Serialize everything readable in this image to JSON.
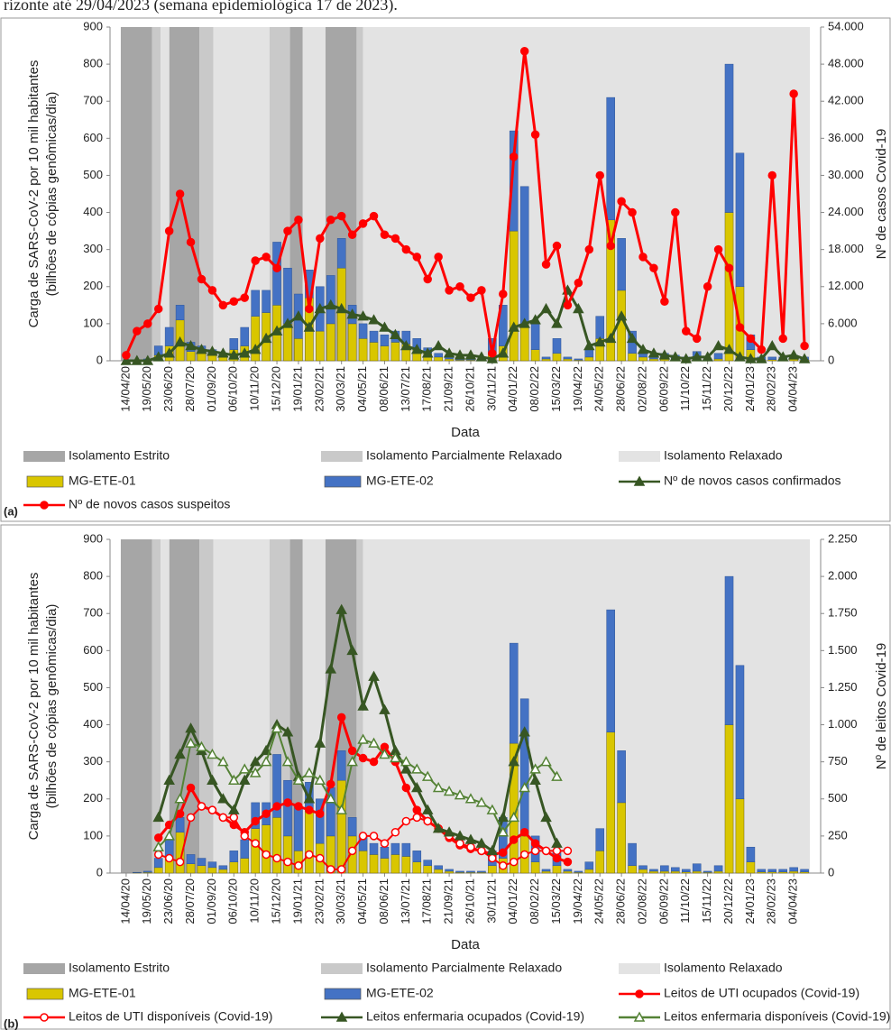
{
  "caption": "rizonte até 29/04/2023 (semana epidemiológica 17 de 2023).",
  "chart_data": [
    {
      "type": "combo",
      "label": "(a)",
      "xlabel": "Data",
      "ylabel": [
        "Carga de SARS-CoV-2 por 10 mil habitantes",
        "(bilhões de cópias genômicas/dia)"
      ],
      "y2label": "Nº de casos Covid-19",
      "categories": [
        "14/04/20",
        null,
        "19/05/20",
        null,
        "23/06/20",
        null,
        "28/07/20",
        null,
        "01/09/20",
        null,
        "06/10/20",
        null,
        "10/11/20",
        null,
        "15/12/20",
        null,
        "19/01/21",
        null,
        "23/02/21",
        null,
        "30/03/21",
        null,
        "04/05/21",
        null,
        "08/06/21",
        null,
        "13/07/21",
        null,
        "17/08/21",
        null,
        "21/09/21",
        null,
        "26/10/21",
        null,
        "30/11/21",
        null,
        "04/01/22",
        null,
        "08/02/22",
        null,
        "15/03/22",
        null,
        "19/04/22",
        null,
        "24/05/22",
        null,
        "28/06/22",
        null,
        "02/08/22",
        null,
        "06/09/22",
        null,
        "11/10/22",
        null,
        "15/11/22",
        null,
        "20/12/22",
        null,
        "24/01/23",
        null,
        "28/02/23",
        null,
        "04/04/23",
        null
      ],
      "ylim": [
        0,
        900
      ],
      "yticks": [
        0,
        100,
        200,
        300,
        400,
        500,
        600,
        700,
        800,
        900
      ],
      "y2lim": [
        0,
        54000
      ],
      "y2ticks": [
        0,
        {
          "value": 6000,
          "label": "6.000"
        },
        {
          "value": 12000,
          "label": "12.000"
        },
        {
          "value": 18000,
          "label": "18.000"
        },
        {
          "value": 24000,
          "label": "24.000"
        },
        {
          "value": 30000,
          "label": "30.000"
        },
        {
          "value": 36000,
          "label": "36.000"
        },
        {
          "value": 42000,
          "label": "42.000"
        },
        {
          "value": 48000,
          "label": "48.000"
        },
        {
          "value": 54000,
          "label": "54.000"
        }
      ],
      "grid": false,
      "periods": [
        {
          "name": "Isolamento Estrito",
          "color": "#a6a6a6",
          "ranges": [
            [
              -0.5,
              2.4
            ],
            [
              4.0,
              6.8
            ],
            [
              15.2,
              16.4
            ],
            [
              18.5,
              21.4
            ]
          ]
        },
        {
          "name": "Isolamento Parcialmente Relaxado",
          "color": "#c9c9c9",
          "ranges": [
            [
              2.4,
              3.2
            ],
            [
              6.8,
              8.1
            ],
            [
              13.3,
              15.2
            ],
            [
              21.4,
              22.0
            ]
          ]
        },
        {
          "name": "Isolamento Relaxado",
          "color": "#e3e3e3",
          "ranges": [
            [
              3.2,
              4.0
            ],
            [
              8.1,
              13.3
            ],
            [
              16.4,
              18.5
            ],
            [
              22.0,
              63.5
            ]
          ]
        }
      ],
      "series": [
        {
          "name": "MG-ETE-01",
          "kind": "bar",
          "color": "#d9c600",
          "values": [
            0,
            1,
            2,
            15,
            40,
            110,
            25,
            20,
            15,
            10,
            30,
            40,
            120,
            130,
            150,
            100,
            60,
            170,
            80,
            100,
            250,
            100,
            60,
            50,
            40,
            50,
            45,
            30,
            20,
            10,
            5,
            2,
            2,
            2,
            20,
            40,
            350,
            100,
            30,
            5,
            20,
            5,
            2,
            10,
            60,
            380,
            190,
            20,
            10,
            5,
            5,
            5,
            3,
            5,
            2,
            5,
            400,
            200,
            30,
            3,
            3,
            3,
            5,
            3
          ]
        },
        {
          "name": "MG-ETE-02",
          "kind": "bar",
          "color": "#4472c4",
          "values": [
            0,
            1,
            3,
            25,
            50,
            40,
            25,
            20,
            15,
            10,
            30,
            50,
            70,
            60,
            170,
            150,
            120,
            75,
            120,
            130,
            80,
            50,
            40,
            30,
            30,
            30,
            35,
            30,
            15,
            10,
            5,
            3,
            3,
            3,
            40,
            110,
            270,
            370,
            70,
            5,
            40,
            5,
            3,
            20,
            60,
            330,
            140,
            60,
            10,
            5,
            15,
            10,
            7,
            20,
            3,
            15,
            400,
            360,
            40,
            7,
            7,
            7,
            10,
            7
          ]
        },
        {
          "name": "Nº de novos casos confirmados",
          "kind": "line",
          "axis": "y2",
          "color": "#375623",
          "marker": "triangle",
          "hollow": false,
          "values": [
            0,
            0,
            0,
            600,
            1200,
            3000,
            2400,
            1800,
            1500,
            1200,
            900,
            1200,
            1800,
            3600,
            4800,
            6000,
            7200,
            5400,
            8400,
            9000,
            8400,
            7500,
            7200,
            6600,
            5400,
            4200,
            2400,
            1800,
            1200,
            2400,
            1200,
            900,
            900,
            600,
            300,
            1200,
            5400,
            6000,
            6600,
            8400,
            6000,
            11400,
            8400,
            2400,
            3000,
            3600,
            7200,
            3600,
            1800,
            1200,
            900,
            600,
            300,
            600,
            600,
            2400,
            1800,
            600,
            300,
            300,
            2400,
            600,
            900,
            300
          ]
        },
        {
          "name": "Nº de novos casos suspeitos",
          "kind": "line",
          "axis": "y2",
          "color": "#ff0000",
          "marker": "circle",
          "hollow": false,
          "values": [
            900,
            4800,
            6000,
            8400,
            21000,
            27000,
            19200,
            13200,
            11400,
            9000,
            9600,
            10200,
            16200,
            16800,
            15000,
            21000,
            22800,
            8400,
            19800,
            22800,
            23400,
            20400,
            22200,
            23400,
            20400,
            19800,
            18000,
            16800,
            13200,
            16800,
            11400,
            12000,
            10200,
            11400,
            1200,
            10800,
            33000,
            50100,
            36600,
            15600,
            18600,
            9000,
            12600,
            18000,
            30000,
            18600,
            25800,
            24000,
            16800,
            15000,
            9600,
            24000,
            4800,
            3600,
            12000,
            18000,
            15000,
            5400,
            3600,
            1800,
            30000,
            3600,
            43200,
            2400
          ]
        }
      ]
    },
    {
      "type": "combo",
      "label": "(b)",
      "xlabel": "Data",
      "ylabel": [
        "Carga de SARS-CoV-2 por 10 mil habitantes",
        "(bilhões de cópias genômicas/dia)"
      ],
      "y2label": "Nº de leitos Covid-19",
      "categories": [
        "14/04/20",
        null,
        "19/05/20",
        null,
        "23/06/20",
        null,
        "28/07/20",
        null,
        "01/09/20",
        null,
        "06/10/20",
        null,
        "10/11/20",
        null,
        "15/12/20",
        null,
        "19/01/21",
        null,
        "23/02/21",
        null,
        "30/03/21",
        null,
        "04/05/21",
        null,
        "08/06/21",
        null,
        "13/07/21",
        null,
        "17/08/21",
        null,
        "21/09/21",
        null,
        "26/10/21",
        null,
        "30/11/21",
        null,
        "04/01/22",
        null,
        "08/02/22",
        null,
        "15/03/22",
        null,
        "19/04/22",
        null,
        "24/05/22",
        null,
        "28/06/22",
        null,
        "02/08/22",
        null,
        "06/09/22",
        null,
        "11/10/22",
        null,
        "15/11/22",
        null,
        "20/12/22",
        null,
        "24/01/23",
        null,
        "28/02/23",
        null,
        "04/04/23",
        null
      ],
      "ylim": [
        0,
        900
      ],
      "yticks": [
        0,
        100,
        200,
        300,
        400,
        500,
        600,
        700,
        800,
        900
      ],
      "y2lim": [
        0,
        2250
      ],
      "y2ticks": [
        0,
        250,
        500,
        750,
        {
          "value": 1000,
          "label": "1.000"
        },
        {
          "value": 1250,
          "label": "1.250"
        },
        {
          "value": 1500,
          "label": "1.500"
        },
        {
          "value": 1750,
          "label": "1.750"
        },
        {
          "value": 2000,
          "label": "2.000"
        },
        {
          "value": 2250,
          "label": "2.250"
        }
      ],
      "grid": false,
      "periods": [
        {
          "name": "Isolamento Estrito",
          "color": "#a6a6a6",
          "ranges": [
            [
              -0.5,
              2.4
            ],
            [
              4.0,
              6.8
            ],
            [
              15.2,
              16.4
            ],
            [
              18.5,
              21.4
            ]
          ]
        },
        {
          "name": "Isolamento Parcialmente Relaxado",
          "color": "#c9c9c9",
          "ranges": [
            [
              2.4,
              3.2
            ],
            [
              6.8,
              8.1
            ],
            [
              13.3,
              15.2
            ],
            [
              21.4,
              22.0
            ]
          ]
        },
        {
          "name": "Isolamento Relaxado",
          "color": "#e3e3e3",
          "ranges": [
            [
              3.2,
              4.0
            ],
            [
              8.1,
              13.3
            ],
            [
              16.4,
              18.5
            ],
            [
              22.0,
              63.5
            ]
          ]
        }
      ],
      "series": [
        {
          "name": "MG-ETE-01",
          "kind": "bar",
          "color": "#d9c600",
          "values": [
            0,
            1,
            2,
            15,
            40,
            110,
            25,
            20,
            15,
            10,
            30,
            40,
            120,
            130,
            150,
            100,
            60,
            170,
            80,
            100,
            250,
            100,
            60,
            50,
            40,
            50,
            45,
            30,
            20,
            10,
            5,
            2,
            2,
            2,
            20,
            40,
            350,
            100,
            30,
            5,
            20,
            5,
            2,
            10,
            60,
            380,
            190,
            20,
            10,
            5,
            5,
            5,
            3,
            5,
            2,
            5,
            400,
            200,
            30,
            3,
            3,
            3,
            5,
            3
          ]
        },
        {
          "name": "MG-ETE-02",
          "kind": "bar",
          "color": "#4472c4",
          "values": [
            0,
            1,
            3,
            25,
            50,
            40,
            25,
            20,
            15,
            10,
            30,
            50,
            70,
            60,
            170,
            150,
            120,
            75,
            120,
            130,
            80,
            50,
            40,
            30,
            30,
            30,
            35,
            30,
            15,
            10,
            5,
            3,
            3,
            3,
            40,
            110,
            270,
            370,
            70,
            5,
            40,
            5,
            3,
            20,
            60,
            330,
            140,
            60,
            10,
            5,
            15,
            10,
            7,
            20,
            3,
            15,
            400,
            360,
            40,
            7,
            7,
            7,
            10,
            7
          ]
        },
        {
          "name": "Leitos de UTI ocupados (Covid-19)",
          "kind": "line",
          "axis": "y2",
          "color": "#ff0000",
          "marker": "circle",
          "hollow": false,
          "values": [
            null,
            null,
            null,
            238,
            325,
            400,
            575,
            450,
            425,
            375,
            325,
            275,
            350,
            400,
            450,
            475,
            450,
            425,
            400,
            600,
            1050,
            825,
            775,
            750,
            850,
            750,
            575,
            425,
            350,
            300,
            238,
            188,
            163,
            150,
            125,
            138,
            225,
            275,
            200,
            150,
            100,
            75,
            null,
            null,
            null,
            null,
            null,
            null,
            null,
            null,
            null,
            null,
            null,
            null,
            null,
            null,
            null,
            null,
            null,
            null,
            null,
            null,
            null,
            null
          ]
        },
        {
          "name": "Leitos de UTI disponíveis (Covid-19)",
          "kind": "line",
          "axis": "y2",
          "color": "#ff0000",
          "marker": "circle",
          "hollow": true,
          "values": [
            null,
            null,
            null,
            125,
            100,
            75,
            375,
            450,
            425,
            375,
            375,
            250,
            200,
            125,
            100,
            75,
            50,
            125,
            100,
            25,
            25,
            150,
            250,
            250,
            200,
            275,
            350,
            375,
            350,
            300,
            250,
            200,
            175,
            150,
            100,
            50,
            75,
            125,
            150,
            150,
            150,
            150,
            null,
            null,
            null,
            null,
            null,
            null,
            null,
            null,
            null,
            null,
            null,
            null,
            null,
            null,
            null,
            null,
            null,
            null,
            null,
            null,
            null,
            null
          ]
        },
        {
          "name": "Leitos enfermaria ocupados (Covid-19)",
          "kind": "line",
          "axis": "y2",
          "color": "#375623",
          "marker": "triangle",
          "hollow": false,
          "values": [
            null,
            null,
            null,
            375,
            625,
            800,
            975,
            825,
            625,
            500,
            425,
            625,
            750,
            825,
            1000,
            950,
            650,
            500,
            875,
            1375,
            1775,
            1500,
            1125,
            1325,
            1100,
            825,
            700,
            575,
            425,
            300,
            275,
            250,
            225,
            200,
            150,
            375,
            750,
            950,
            625,
            375,
            200,
            null,
            null,
            null,
            null,
            null,
            null,
            null,
            null,
            null,
            null,
            null,
            null,
            null,
            null,
            null,
            null,
            null,
            null,
            null,
            null,
            null,
            null,
            null
          ]
        },
        {
          "name": "Leitos enfermaria disponíveis (Covid-19)",
          "kind": "line",
          "axis": "y2",
          "color": "#548235",
          "marker": "triangle",
          "hollow": true,
          "values": [
            null,
            null,
            null,
            175,
            250,
            500,
            875,
            850,
            800,
            750,
            625,
            700,
            675,
            750,
            975,
            750,
            625,
            675,
            625,
            500,
            425,
            750,
            900,
            875,
            800,
            775,
            750,
            700,
            650,
            575,
            550,
            525,
            500,
            475,
            425,
            275,
            375,
            575,
            700,
            750,
            650,
            null,
            null,
            null,
            null,
            null,
            null,
            null,
            null,
            null,
            null,
            null,
            null,
            null,
            null,
            null,
            null,
            null,
            null,
            null,
            null,
            null,
            null,
            null
          ]
        }
      ]
    }
  ]
}
